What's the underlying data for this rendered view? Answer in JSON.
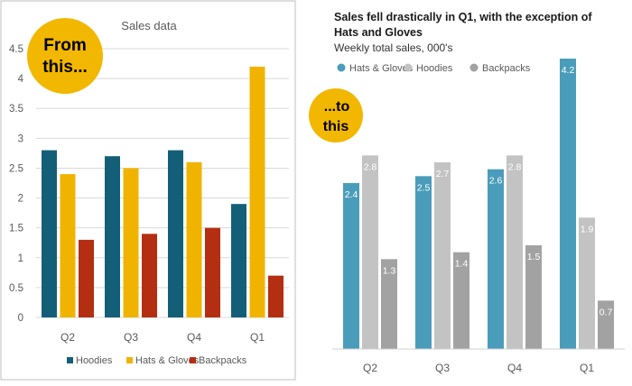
{
  "before_badge": {
    "line1": "From",
    "line2": "this..."
  },
  "after_badge": {
    "line1": "...to",
    "line2": "this"
  },
  "colors": {
    "badge": "#F2B700",
    "hoodies_before": "#145F78",
    "hats_before": "#F0B400",
    "backpacks_before": "#B42E12",
    "hats_after": "#4A9DBA",
    "hoodies_after": "#C3C3C3",
    "backpacks_after": "#A2A2A2"
  },
  "chart_data": [
    {
      "type": "bar",
      "title": "Sales data",
      "categories": [
        "Q2",
        "Q3",
        "Q4",
        "Q1"
      ],
      "series": [
        {
          "name": "Hoodies",
          "values": [
            2.8,
            2.7,
            2.8,
            1.9
          ]
        },
        {
          "name": "Hats & Gloves",
          "values": [
            2.4,
            2.5,
            2.6,
            4.2
          ]
        },
        {
          "name": "Backpacks",
          "values": [
            1.3,
            1.4,
            1.5,
            0.7
          ]
        }
      ],
      "ylim": [
        0,
        4.5
      ],
      "yticks": [
        "0",
        "0.5",
        "1",
        "1.5",
        "2",
        "2.5",
        "3",
        "3.5",
        "4",
        "4.5"
      ],
      "grid": true,
      "legend": "bottom"
    },
    {
      "type": "bar",
      "title": "Sales fell drastically in Q1, with the exception of Hats and Gloves",
      "subtitle": "Weekly total sales, 000's",
      "categories": [
        "Q2",
        "Q3",
        "Q4",
        "Q1"
      ],
      "series": [
        {
          "name": "Hats & Gloves",
          "values": [
            2.4,
            2.5,
            2.6,
            4.2
          ],
          "labels": [
            "2.4",
            "2.5",
            "2.6",
            "4.2"
          ]
        },
        {
          "name": "Hoodies",
          "values": [
            2.8,
            2.7,
            2.8,
            1.9
          ],
          "labels": [
            "2.8",
            "2.7",
            "2.8",
            "1.9"
          ]
        },
        {
          "name": "Backpacks",
          "values": [
            1.3,
            1.4,
            1.5,
            0.7
          ],
          "labels": [
            "1.3",
            "1.4",
            "1.5",
            "0.7"
          ]
        }
      ],
      "ylim": [
        0,
        4.5
      ],
      "grid": false,
      "legend": "top-left"
    }
  ]
}
